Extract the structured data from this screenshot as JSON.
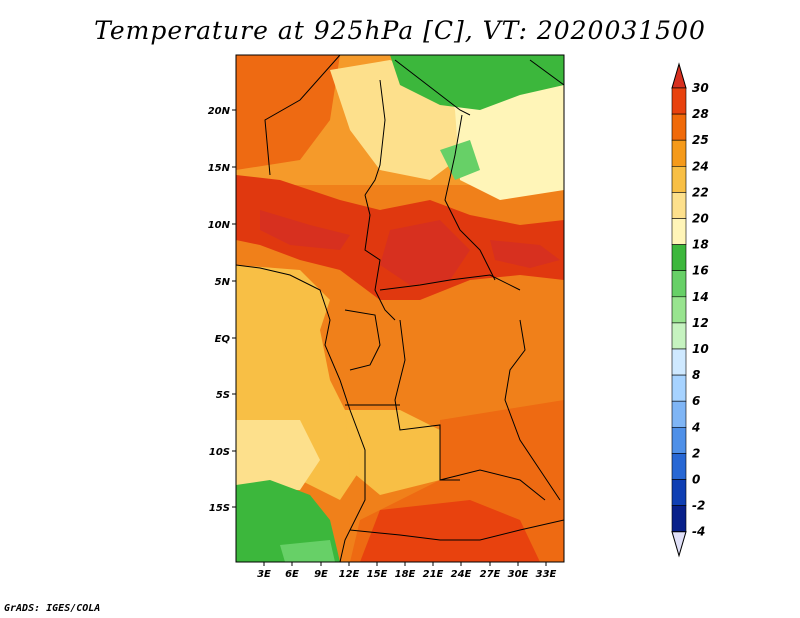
{
  "title": "Temperature at 925hPa [C], VT: 2020031500",
  "credit": "GrADS: IGES/COLA",
  "map": {
    "lat_ticks": [
      "20N",
      "15N",
      "10N",
      "5N",
      "EQ",
      "5S",
      "10S",
      "15S"
    ],
    "lon_ticks": [
      "3E",
      "6E",
      "9E",
      "12E",
      "15E",
      "18E",
      "21E",
      "24E",
      "27E",
      "30E",
      "33E"
    ]
  },
  "colorbar": {
    "levels": [
      "30",
      "28",
      "25",
      "24",
      "22",
      "20",
      "18",
      "16",
      "14",
      "12",
      "10",
      "8",
      "6",
      "4",
      "2",
      "0",
      "-2",
      "-4"
    ],
    "colors": [
      "#d7301f",
      "#e8420e",
      "#f06a0a",
      "#f59a1a",
      "#f8bf45",
      "#fde08c",
      "#fff5b8",
      "#3cb73c",
      "#67d067",
      "#98e48f",
      "#c6f3c0",
      "#cfe9ff",
      "#a7d3ff",
      "#7fb5f5",
      "#4f90e8",
      "#2767d4",
      "#0f3fb3",
      "#08208a",
      "#050a5c"
    ]
  }
}
